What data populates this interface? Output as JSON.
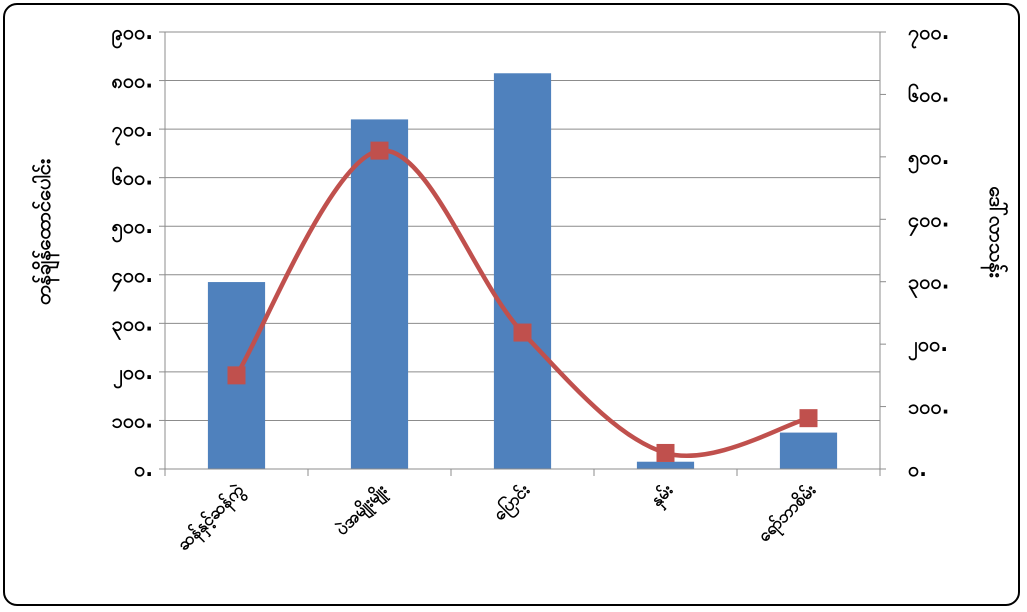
{
  "chart_data": {
    "type": "bar",
    "categories": [
      "ဆန်နှင့်ဆန်ကွဲ",
      "ပဲအမျိုးမျိုး",
      "ပြောင်း",
      "နှမ်း",
      "ရော်ဘာစိမ်း"
    ],
    "series": [
      {
        "type": "bar",
        "axis": "left",
        "color": "#4F81BD",
        "values": [
          385,
          720,
          815,
          15,
          75
        ]
      },
      {
        "type": "line",
        "axis": "right",
        "color": "#C0504D",
        "smooth": true,
        "marker": "square",
        "values": [
          175,
          595,
          255,
          30,
          95
        ]
      }
    ],
    "ylabel_left": "တန်ချိန်ထောင်ပေါင်း",
    "ylabel_right": "ဒေါ်လာသန်း",
    "ylim_left": [
      0,
      800
    ],
    "ylim_right": [
      0,
      700
    ],
    "yticks_left": [
      "၀.",
      "၁၀၀.",
      "၂၀၀.",
      "၃၀၀.",
      "၄၀၀.",
      "၅၀၀.",
      "၆၀၀.",
      "၇၀၀.",
      "၈၀၀.",
      "၉၀၀."
    ],
    "yticks_right": [
      "၀.",
      "၁၀၀.",
      "၂၀၀.",
      "၃၀၀.",
      "၄၀၀.",
      "၅၀၀.",
      "၆၀၀.",
      "၇၀၀."
    ],
    "grid": true,
    "legend": "none"
  }
}
